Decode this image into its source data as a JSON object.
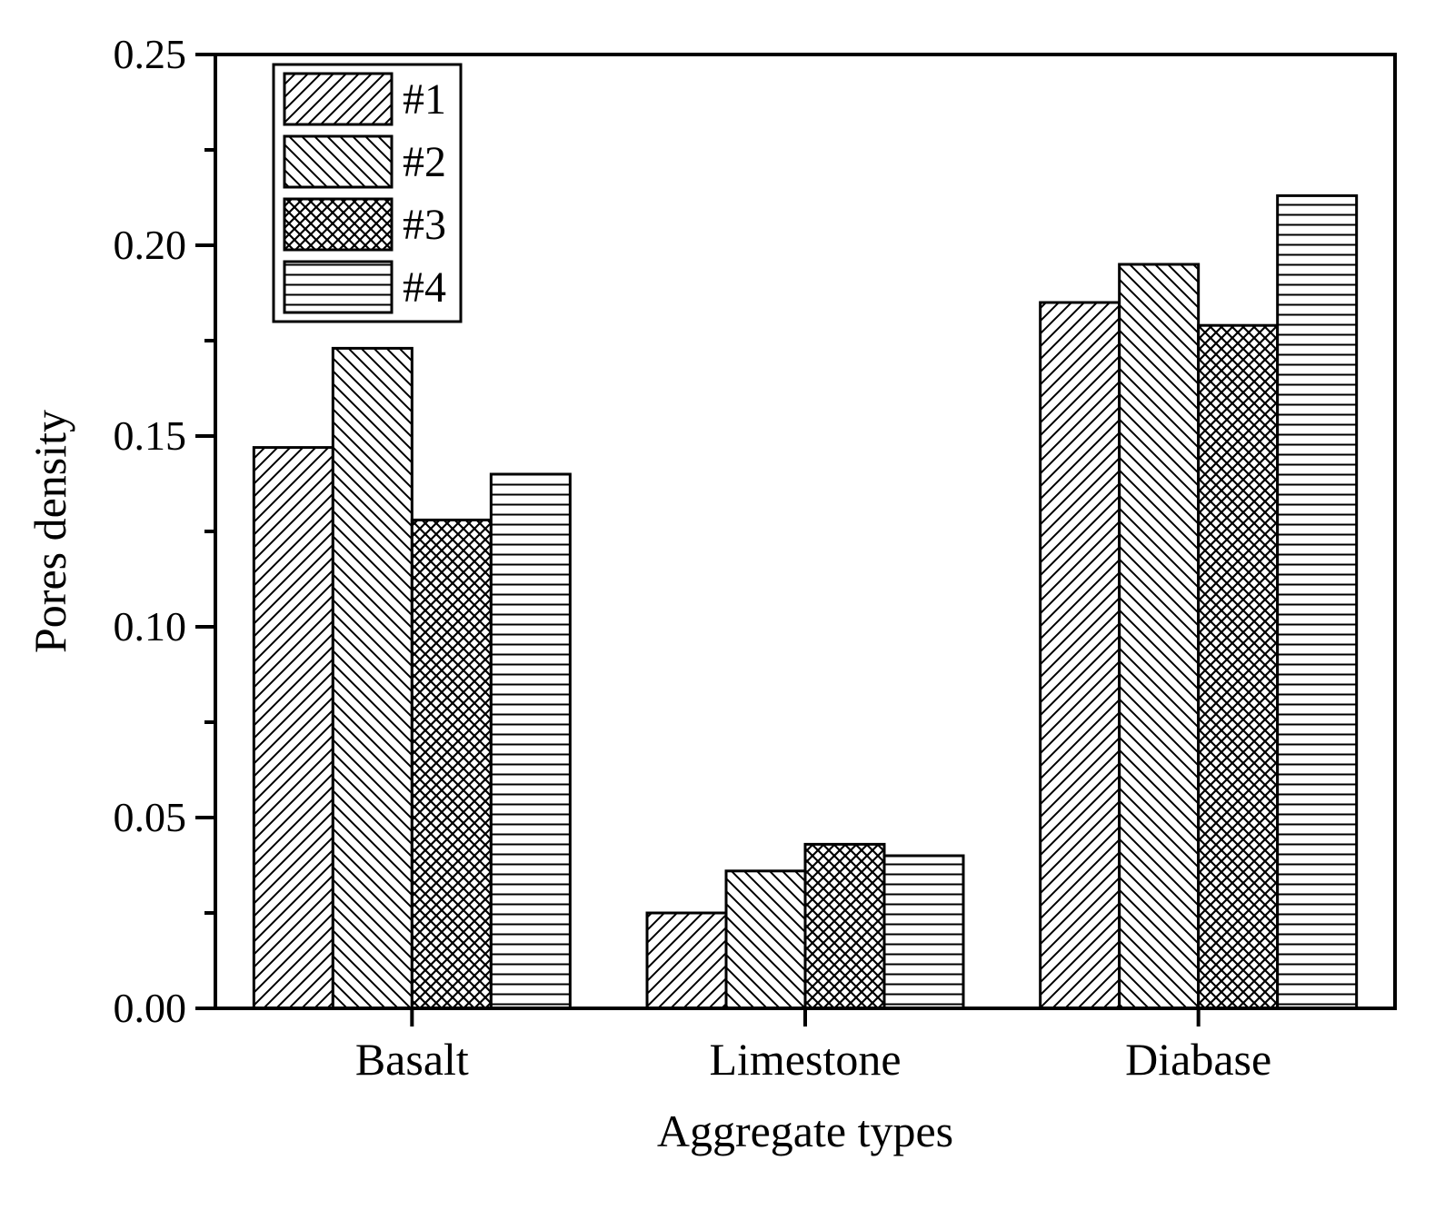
{
  "chart_data": {
    "type": "bar",
    "title": "",
    "xlabel": "Aggregate types",
    "ylabel": "Pores density",
    "ylim": [
      0,
      0.25
    ],
    "yticks": [
      "0.00",
      "0.05",
      "0.10",
      "0.15",
      "0.20",
      "0.25"
    ],
    "categories": [
      "Basalt",
      "Limestone",
      "Diabase"
    ],
    "series": [
      {
        "name": "#1",
        "pattern": "diagonal-forward",
        "values": [
          0.147,
          0.025,
          0.185
        ]
      },
      {
        "name": "#2",
        "pattern": "diagonal-backward",
        "values": [
          0.173,
          0.036,
          0.195
        ]
      },
      {
        "name": "#3",
        "pattern": "crosshatch",
        "values": [
          0.128,
          0.043,
          0.179
        ]
      },
      {
        "name": "#4",
        "pattern": "horizontal",
        "values": [
          0.14,
          0.04,
          0.213
        ]
      }
    ],
    "grid": false,
    "legend_position": "top-left",
    "colors": {
      "ink": "#000000",
      "fill": "#ffffff"
    }
  }
}
